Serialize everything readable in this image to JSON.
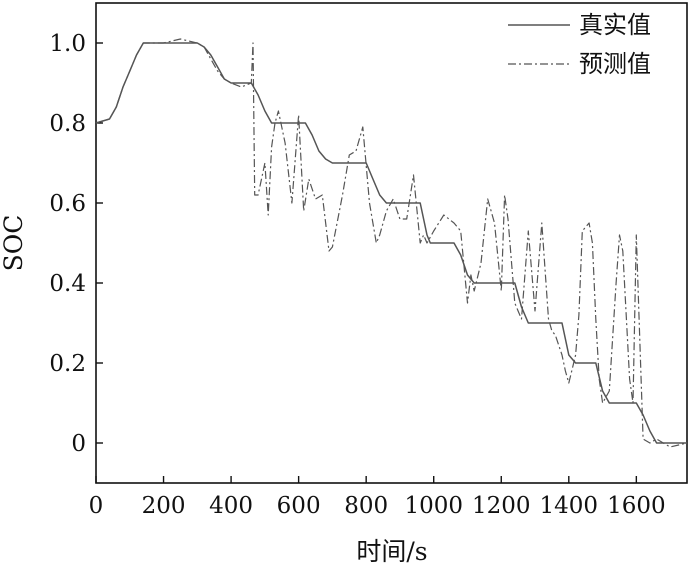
{
  "chart_data": {
    "type": "line",
    "title": "",
    "xlabel": "时间/s",
    "ylabel": "SOC",
    "xlim": [
      0,
      1750
    ],
    "ylim": [
      -0.1,
      1.1
    ],
    "xticks": [
      0,
      200,
      400,
      600,
      800,
      1000,
      1200,
      1400,
      1600
    ],
    "xtick_labels": [
      "0",
      "200",
      "400",
      "600",
      "800",
      "1000",
      "1200",
      "1400",
      "1600"
    ],
    "yticks": [
      0,
      0.2,
      0.4,
      0.6,
      0.8,
      1.0
    ],
    "ytick_labels": [
      "0",
      "0.2",
      "0.4",
      "0.6",
      "0.8",
      "1.0"
    ],
    "grid": false,
    "legend_position": "top-right",
    "colors": {
      "axis": "#111111",
      "true_line": "#555555",
      "pred_line": "#555555"
    },
    "series": [
      {
        "name": "真实值",
        "style": "solid",
        "x": [
          0,
          40,
          60,
          80,
          100,
          120,
          140,
          300,
          320,
          340,
          360,
          380,
          400,
          460,
          480,
          500,
          520,
          540,
          620,
          640,
          660,
          680,
          700,
          800,
          820,
          840,
          860,
          880,
          960,
          970,
          980,
          990,
          1000,
          1060,
          1080,
          1100,
          1120,
          1240,
          1260,
          1280,
          1380,
          1390,
          1400,
          1420,
          1440,
          1480,
          1500,
          1520,
          1580,
          1600,
          1620,
          1640,
          1660,
          1700,
          1750
        ],
        "y": [
          0.8,
          0.81,
          0.84,
          0.89,
          0.93,
          0.97,
          1.0,
          1.0,
          0.99,
          0.97,
          0.94,
          0.91,
          0.9,
          0.9,
          0.87,
          0.83,
          0.8,
          0.8,
          0.8,
          0.77,
          0.73,
          0.71,
          0.7,
          0.7,
          0.66,
          0.62,
          0.6,
          0.6,
          0.6,
          0.56,
          0.52,
          0.5,
          0.5,
          0.5,
          0.47,
          0.42,
          0.4,
          0.4,
          0.34,
          0.3,
          0.3,
          0.26,
          0.22,
          0.2,
          0.2,
          0.2,
          0.13,
          0.1,
          0.1,
          0.1,
          0.07,
          0.03,
          0.0,
          0.0,
          0.0
        ]
      },
      {
        "name": "预测值",
        "style": "dashdot",
        "x": [
          0,
          40,
          60,
          80,
          100,
          120,
          140,
          200,
          250,
          300,
          320,
          340,
          360,
          380,
          400,
          430,
          460,
          465,
          470,
          480,
          500,
          510,
          520,
          530,
          540,
          560,
          580,
          600,
          615,
          630,
          650,
          670,
          690,
          700,
          730,
          750,
          770,
          790,
          810,
          830,
          840,
          860,
          880,
          900,
          920,
          940,
          960,
          970,
          980,
          1000,
          1030,
          1060,
          1080,
          1100,
          1110,
          1120,
          1140,
          1160,
          1180,
          1200,
          1210,
          1220,
          1240,
          1250,
          1260,
          1280,
          1300,
          1320,
          1340,
          1350,
          1360,
          1380,
          1390,
          1400,
          1420,
          1430,
          1440,
          1460,
          1470,
          1480,
          1490,
          1500,
          1520,
          1540,
          1550,
          1560,
          1570,
          1580,
          1590,
          1600,
          1620,
          1640,
          1660,
          1700,
          1750
        ],
        "y": [
          0.8,
          0.81,
          0.84,
          0.89,
          0.93,
          0.97,
          1.0,
          1.0,
          1.01,
          1.0,
          0.99,
          0.96,
          0.93,
          0.91,
          0.9,
          0.89,
          0.9,
          1.0,
          0.62,
          0.62,
          0.7,
          0.57,
          0.74,
          0.8,
          0.83,
          0.75,
          0.6,
          0.82,
          0.58,
          0.66,
          0.61,
          0.62,
          0.48,
          0.49,
          0.62,
          0.72,
          0.73,
          0.79,
          0.6,
          0.5,
          0.52,
          0.58,
          0.61,
          0.56,
          0.56,
          0.67,
          0.5,
          0.52,
          0.5,
          0.53,
          0.57,
          0.55,
          0.53,
          0.35,
          0.42,
          0.38,
          0.45,
          0.61,
          0.55,
          0.38,
          0.62,
          0.56,
          0.35,
          0.33,
          0.31,
          0.53,
          0.33,
          0.55,
          0.31,
          0.28,
          0.27,
          0.22,
          0.18,
          0.15,
          0.22,
          0.32,
          0.53,
          0.55,
          0.5,
          0.31,
          0.16,
          0.1,
          0.13,
          0.4,
          0.52,
          0.48,
          0.32,
          0.16,
          0.1,
          0.52,
          0.01,
          0.0,
          0.01,
          -0.01,
          0.0
        ]
      }
    ]
  }
}
